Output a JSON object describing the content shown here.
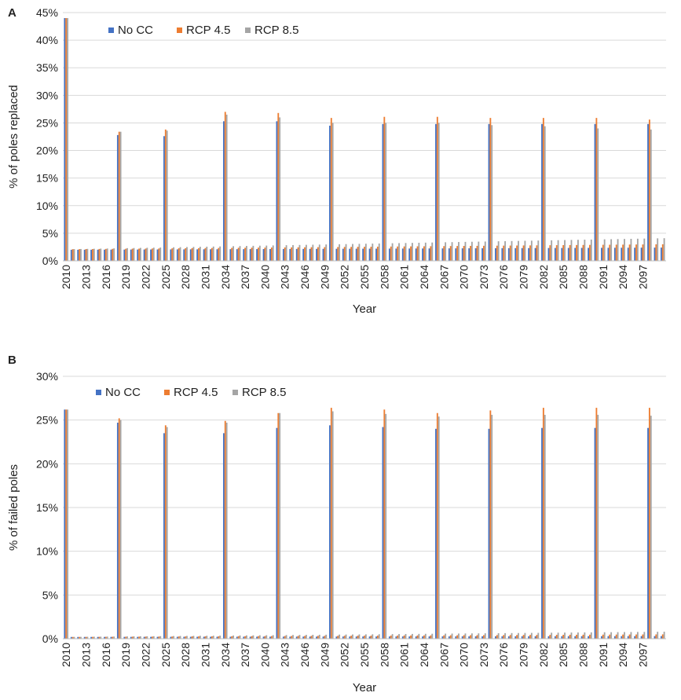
{
  "chart_data": [
    {
      "type": "bar",
      "panel_label": "A",
      "title": "",
      "xlabel": "Year",
      "ylabel": "% of poles replaced",
      "ylim": [
        0,
        45
      ],
      "yticks": [
        "0%",
        "5%",
        "10%",
        "15%",
        "20%",
        "25%",
        "30%",
        "35%",
        "40%",
        "45%"
      ],
      "grid": true,
      "legend_position": "top-left",
      "x_start": 2010,
      "x_end": 2100,
      "x_tick_labels": [
        "2010",
        "2013",
        "2016",
        "2019",
        "2022",
        "2025",
        "2028",
        "2031",
        "2034",
        "2037",
        "2040",
        "2043",
        "2046",
        "2049",
        "2052",
        "2055",
        "2058",
        "2061",
        "2064",
        "2067",
        "2070",
        "2073",
        "2076",
        "2079",
        "2082",
        "2085",
        "2088",
        "2091",
        "2094",
        "2097"
      ],
      "peaks": [
        {
          "year": 2010,
          "values": [
            44.0,
            44.0,
            44.0
          ]
        },
        {
          "year": 2018,
          "values": [
            22.8,
            23.4,
            23.4
          ]
        },
        {
          "year": 2025,
          "values": [
            22.6,
            23.8,
            23.6
          ]
        },
        {
          "year": 2034,
          "values": [
            25.3,
            27.0,
            26.5
          ]
        },
        {
          "year": 2042,
          "values": [
            25.3,
            26.8,
            26.0
          ]
        },
        {
          "year": 2050,
          "values": [
            24.5,
            25.9,
            25.0
          ]
        },
        {
          "year": 2058,
          "values": [
            24.8,
            26.1,
            25.0
          ]
        },
        {
          "year": 2066,
          "values": [
            24.8,
            26.1,
            25.0
          ]
        },
        {
          "year": 2074,
          "values": [
            24.8,
            25.9,
            24.6
          ]
        },
        {
          "year": 2082,
          "values": [
            24.8,
            25.9,
            24.4
          ]
        },
        {
          "year": 2090,
          "values": [
            24.8,
            25.9,
            24.0
          ]
        },
        {
          "year": 2098,
          "values": [
            24.8,
            25.6,
            23.8
          ]
        }
      ],
      "baseline": {
        "no_cc_start": 2.0,
        "no_cc_end": 2.4,
        "rcp45_start": 2.1,
        "rcp45_end": 3.0,
        "rcp85_start": 2.1,
        "rcp85_end": 4.1
      },
      "series": [
        {
          "name": "No CC",
          "color": "#4472c4"
        },
        {
          "name": "RCP 4.5",
          "color": "#ed7d31"
        },
        {
          "name": "RCP 8.5",
          "color": "#a5a5a5"
        }
      ]
    },
    {
      "type": "bar",
      "panel_label": "B",
      "title": "",
      "xlabel": "Year",
      "ylabel": "% of failed poles",
      "ylim": [
        0,
        30
      ],
      "yticks": [
        "0%",
        "5%",
        "10%",
        "15%",
        "20%",
        "25%",
        "30%"
      ],
      "grid": true,
      "legend_position": "top-left",
      "x_start": 2010,
      "x_end": 2100,
      "x_tick_labels": [
        "2010",
        "2013",
        "2016",
        "2019",
        "2022",
        "2025",
        "2028",
        "2031",
        "2034",
        "2037",
        "2040",
        "2043",
        "2046",
        "2049",
        "2052",
        "2055",
        "2058",
        "2061",
        "2064",
        "2067",
        "2070",
        "2073",
        "2076",
        "2079",
        "2082",
        "2085",
        "2088",
        "2091",
        "2094",
        "2097"
      ],
      "peaks": [
        {
          "year": 2010,
          "values": [
            26.2,
            26.2,
            26.2
          ]
        },
        {
          "year": 2018,
          "values": [
            24.7,
            25.2,
            25.0
          ]
        },
        {
          "year": 2025,
          "values": [
            23.5,
            24.4,
            24.2
          ]
        },
        {
          "year": 2034,
          "values": [
            23.5,
            24.9,
            24.7
          ]
        },
        {
          "year": 2042,
          "values": [
            24.1,
            25.8,
            25.8
          ]
        },
        {
          "year": 2050,
          "values": [
            24.4,
            26.4,
            26.0
          ]
        },
        {
          "year": 2058,
          "values": [
            24.2,
            26.2,
            25.7
          ]
        },
        {
          "year": 2066,
          "values": [
            24.0,
            25.8,
            25.4
          ]
        },
        {
          "year": 2074,
          "values": [
            24.0,
            26.1,
            25.6
          ]
        },
        {
          "year": 2082,
          "values": [
            24.1,
            26.4,
            25.6
          ]
        },
        {
          "year": 2090,
          "values": [
            24.1,
            26.4,
            25.6
          ]
        },
        {
          "year": 2098,
          "values": [
            24.1,
            26.4,
            25.5
          ]
        }
      ],
      "baseline": {
        "no_cc_start": 0.2,
        "no_cc_end": 0.3,
        "rcp45_start": 0.2,
        "rcp45_end": 0.5,
        "rcp85_start": 0.2,
        "rcp85_end": 0.8
      },
      "series": [
        {
          "name": "No CC",
          "color": "#4472c4"
        },
        {
          "name": "RCP 4.5",
          "color": "#ed7d31"
        },
        {
          "name": "RCP 8.5",
          "color": "#a5a5a5"
        }
      ]
    }
  ]
}
